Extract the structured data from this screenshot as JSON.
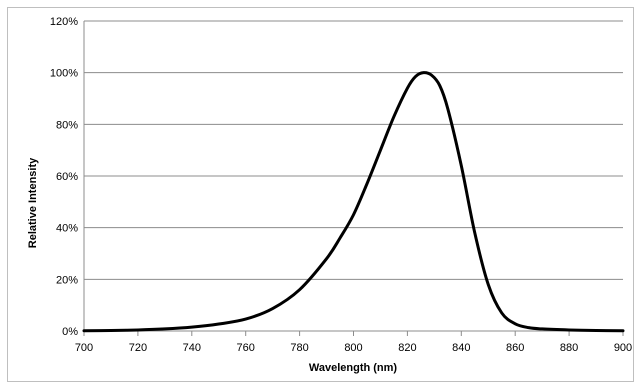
{
  "chart_data": {
    "type": "line",
    "title": "",
    "xlabel": "Wavelength (nm)",
    "ylabel": "Relative Intensity",
    "xlim": [
      700,
      900
    ],
    "ylim": [
      0,
      120
    ],
    "x_ticks": [
      700,
      720,
      740,
      760,
      780,
      800,
      820,
      840,
      860,
      880,
      900
    ],
    "y_ticks": [
      0,
      20,
      40,
      60,
      80,
      100,
      120
    ],
    "y_tick_labels": [
      "0%",
      "20%",
      "40%",
      "60%",
      "80%",
      "100%",
      "120%"
    ],
    "grid": "horizontal",
    "legend": "none",
    "series": [
      {
        "color": "#000000",
        "x": [
          700,
          710,
          720,
          730,
          740,
          750,
          760,
          770,
          780,
          790,
          795,
          800,
          805,
          810,
          815,
          820,
          823,
          826,
          829,
          832,
          835,
          840,
          845,
          850,
          855,
          860,
          865,
          870,
          880,
          890,
          900
        ],
        "y": [
          0.1,
          0.2,
          0.4,
          0.8,
          1.5,
          2.7,
          4.6,
          8.7,
          16,
          28,
          36,
          45,
          57,
          70,
          83,
          94,
          98.5,
          100,
          99,
          95,
          86,
          64,
          38,
          18,
          7,
          2.8,
          1.3,
          0.8,
          0.4,
          0.2,
          0.1
        ]
      }
    ]
  }
}
